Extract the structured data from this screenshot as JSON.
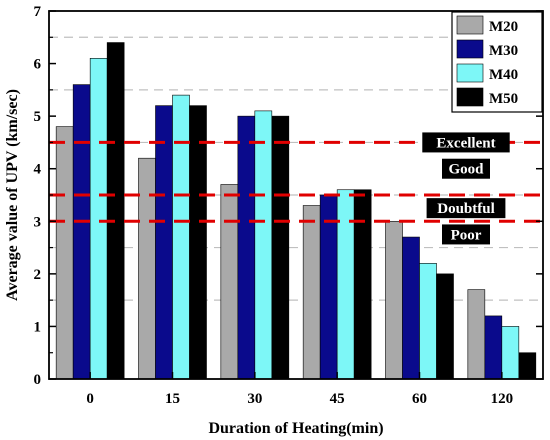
{
  "chart_data": {
    "type": "bar",
    "xlabel": "Duration of Heating(min)",
    "ylabel": "Average value of UPV (km/sec)",
    "ylim": [
      0,
      7
    ],
    "yticks": [
      0,
      1,
      2,
      3,
      4,
      5,
      6,
      7
    ],
    "categories": [
      "0",
      "15",
      "30",
      "45",
      "60",
      "120"
    ],
    "series": [
      {
        "name": "M20",
        "color": "#a9a9a9",
        "values": [
          4.8,
          4.2,
          3.7,
          3.3,
          3.0,
          1.7
        ]
      },
      {
        "name": "M30",
        "color": "#0a0a8c",
        "values": [
          5.6,
          5.2,
          5.0,
          3.5,
          2.7,
          1.2
        ]
      },
      {
        "name": "M40",
        "color": "#7df7f7",
        "values": [
          6.1,
          5.4,
          5.1,
          3.6,
          2.2,
          1.0
        ]
      },
      {
        "name": "M50",
        "color": "#000000",
        "values": [
          6.4,
          5.2,
          5.0,
          3.6,
          2.0,
          0.5
        ]
      }
    ],
    "grid": {
      "horizontal": true,
      "style": "dashed",
      "color": "#c0c0c0",
      "values": [
        1.5,
        2.5,
        3.5,
        4.5,
        5.5,
        6.5
      ]
    },
    "legend": {
      "position": "top-right"
    },
    "thresholds": [
      {
        "value": 4.5,
        "color": "#e00000"
      },
      {
        "value": 3.5,
        "color": "#e00000"
      },
      {
        "value": 3.0,
        "color": "#e00000"
      }
    ],
    "zone_labels": [
      {
        "text": "Excellent",
        "value": 4.5
      },
      {
        "text": "Good",
        "value": 4.0
      },
      {
        "text": "Doubtful",
        "value": 3.25
      },
      {
        "text": "Poor",
        "value": 2.75
      }
    ]
  }
}
